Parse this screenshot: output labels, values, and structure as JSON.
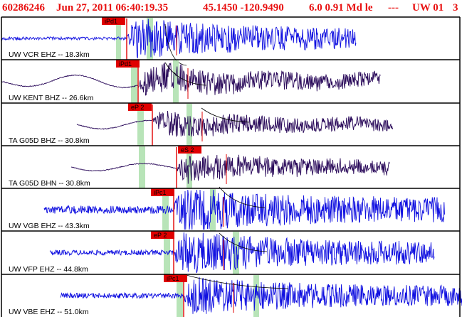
{
  "header": {
    "event_id": "60286246",
    "datetime": "Jun 27, 2011 06:40:19.35",
    "coordinates": "45.1450 -120.9490",
    "magnitude_info": "6.0 0.91 Md le",
    "status": "---",
    "network": "UW 01",
    "page": "3"
  },
  "colors": {
    "header_text": "#e81010",
    "vertical_trace": "#1010e0",
    "broadband_trace": "#2a0a5a",
    "pick_marker": "#e00000",
    "window_bar": "#b8e4b8",
    "border": "#000000"
  },
  "traces": [
    {
      "label": "UW VCR EHZ -- 18.3km",
      "pick": "iPd1",
      "style": "vertical"
    },
    {
      "label": "UW KENT BHZ -- 26.6km",
      "pick": "iPd1",
      "style": "broadband"
    },
    {
      "label": "TA G05D BHZ -- 30.8km",
      "pick": "eP 2",
      "style": "broadband"
    },
    {
      "label": "TA G05D BHN -- 30.8km",
      "pick": "eS 2",
      "style": "broadband"
    },
    {
      "label": "UW VGB EHZ -- 43.3km",
      "pick": "iPc1",
      "style": "vertical"
    },
    {
      "label": "UW VFP EHZ -- 44.8km",
      "pick": "eP 2",
      "style": "vertical"
    },
    {
      "label": "UW VBE EHZ -- 51.0km",
      "pick": "iPc1",
      "style": "vertical"
    }
  ]
}
